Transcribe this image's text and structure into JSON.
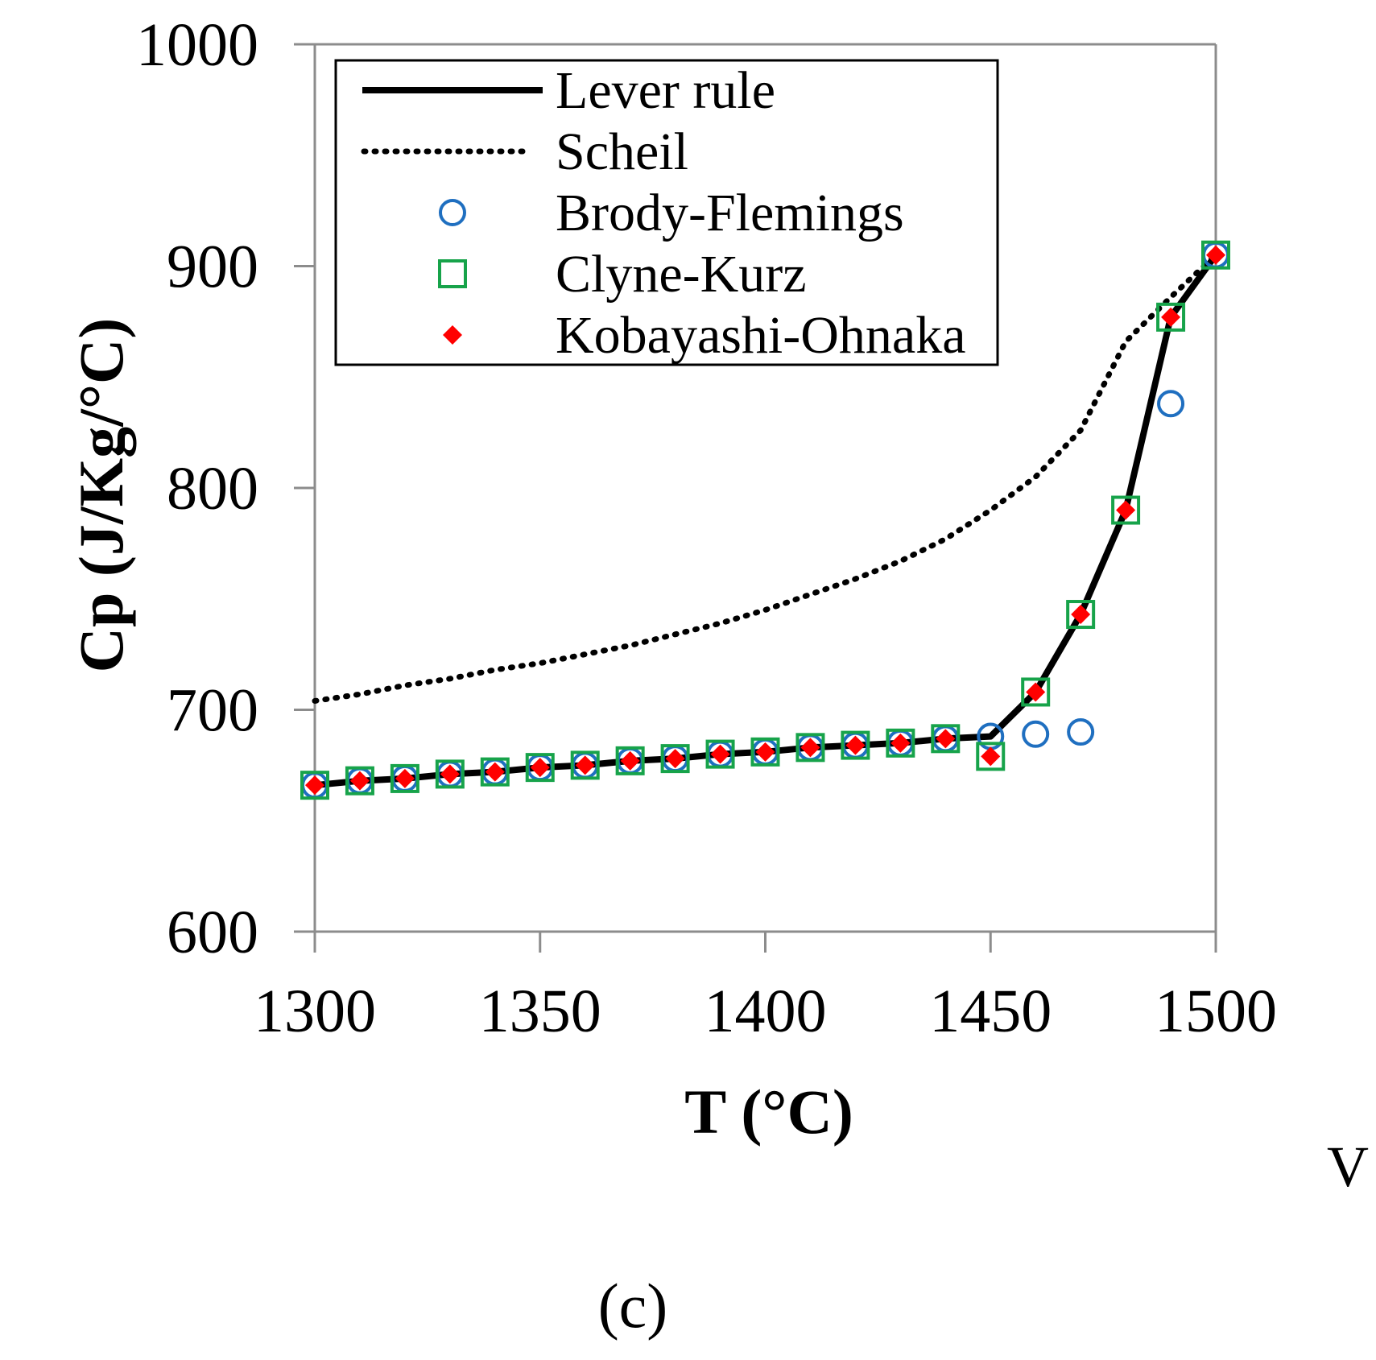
{
  "chart_data": {
    "type": "line",
    "xlabel": "T (°C)",
    "ylabel": "Cp (J/Kg/°C)",
    "xlim": [
      1300,
      1500
    ],
    "ylim": [
      600,
      1000
    ],
    "xticks": [
      "1300",
      "1350",
      "1400",
      "1450",
      "1500"
    ],
    "yticks": [
      "600",
      "700",
      "800",
      "900",
      "1000"
    ],
    "legend_position": "top-left",
    "grid": false,
    "panel_label": "(c)",
    "stray_text": "V",
    "series": [
      {
        "name": "Lever rule",
        "style": "solid-line",
        "color": "#000000",
        "x": [
          1300,
          1310,
          1320,
          1330,
          1340,
          1350,
          1360,
          1370,
          1380,
          1390,
          1400,
          1410,
          1420,
          1430,
          1440,
          1450,
          1460,
          1470,
          1480,
          1490,
          1500
        ],
        "y": [
          666,
          668,
          669,
          671,
          672,
          674,
          675,
          677,
          678,
          680,
          681,
          683,
          684,
          685,
          687,
          688,
          708,
          743,
          790,
          877,
          905
        ]
      },
      {
        "name": "Scheil",
        "style": "dotted-line",
        "color": "#000000",
        "x": [
          1300,
          1310,
          1320,
          1330,
          1340,
          1350,
          1360,
          1370,
          1380,
          1390,
          1400,
          1410,
          1420,
          1430,
          1440,
          1450,
          1460,
          1470,
          1480,
          1490,
          1500
        ],
        "y": [
          704,
          707,
          711,
          714,
          718,
          721,
          725,
          729,
          734,
          739,
          745,
          752,
          759,
          767,
          777,
          790,
          805,
          826,
          866,
          886,
          905
        ]
      },
      {
        "name": "Brody-Flemings",
        "style": "open-circle",
        "color": "#1f6fc0",
        "x": [
          1300,
          1310,
          1320,
          1330,
          1340,
          1350,
          1360,
          1370,
          1380,
          1390,
          1400,
          1410,
          1420,
          1430,
          1440,
          1450,
          1460,
          1470,
          1490,
          1500
        ],
        "y": [
          666,
          668,
          669,
          671,
          672,
          674,
          675,
          677,
          678,
          680,
          681,
          683,
          684,
          685,
          687,
          688,
          689,
          690,
          838,
          905
        ]
      },
      {
        "name": "Clyne-Kurz",
        "style": "open-square",
        "color": "#17a34a",
        "x": [
          1300,
          1310,
          1320,
          1330,
          1340,
          1350,
          1360,
          1370,
          1380,
          1390,
          1400,
          1410,
          1420,
          1430,
          1440,
          1450,
          1460,
          1470,
          1480,
          1490,
          1500
        ],
        "y": [
          666,
          668,
          669,
          671,
          672,
          674,
          675,
          677,
          678,
          680,
          681,
          683,
          684,
          685,
          687,
          679,
          708,
          743,
          790,
          877,
          905
        ]
      },
      {
        "name": "Kobayashi-Ohnaka",
        "style": "filled-diamond",
        "color": "#ff0000",
        "x": [
          1300,
          1310,
          1320,
          1330,
          1340,
          1350,
          1360,
          1370,
          1380,
          1390,
          1400,
          1410,
          1420,
          1430,
          1440,
          1450,
          1460,
          1470,
          1480,
          1490,
          1500
        ],
        "y": [
          666,
          668,
          669,
          671,
          672,
          674,
          675,
          677,
          678,
          680,
          681,
          683,
          684,
          685,
          687,
          679,
          708,
          743,
          790,
          877,
          905
        ]
      }
    ]
  }
}
